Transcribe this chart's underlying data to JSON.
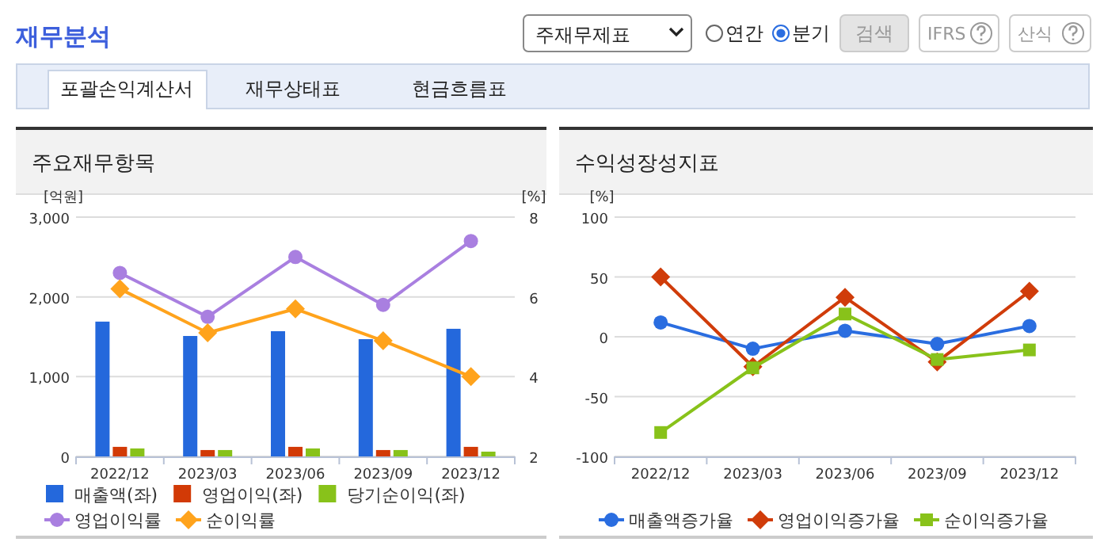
{
  "chart_data": [
    {
      "type": "other",
      "title": "재무분석",
      "annotations": [
        "주재무제표",
        "연간",
        "분기",
        "검색",
        "IFRS",
        "산식",
        "포괄손익계산서",
        "재무상태표",
        "현금흐름표"
      ]
    },
    {
      "type": "bar",
      "title": "주요재무항목",
      "categories": [
        "2022/12",
        "2023/03",
        "2023/06",
        "2023/09",
        "2023/12"
      ],
      "ylabel": "[억원]",
      "y2label": "[%]",
      "ylim": [
        0,
        3000
      ],
      "yticks": [
        {
          "value": 0,
          "label": "0"
        },
        {
          "value": 1000,
          "label": "1,000"
        },
        {
          "value": 2000,
          "label": "2,000"
        },
        {
          "value": 3000,
          "label": "3,000"
        }
      ],
      "y2lim": [
        2,
        8
      ],
      "y2ticks": [
        2,
        4,
        6,
        8
      ],
      "grid": "y",
      "legend": "bottom",
      "series": [
        {
          "name": "매출액(좌)",
          "color": "#2468dc",
          "values": [
            1690,
            1510,
            1570,
            1470,
            1600
          ]
        },
        {
          "name": "영업이익(좌)",
          "color": "#d23a06",
          "values": [
            120,
            80,
            120,
            80,
            120
          ]
        },
        {
          "name": "당기순이익(좌)",
          "color": "#88c21a",
          "values": [
            100,
            80,
            100,
            80,
            60
          ]
        },
        {
          "name": "영업이익률",
          "type": "line",
          "axis": "y2",
          "marker": "circle",
          "color": "#a97fe0",
          "values": [
            6.6,
            5.5,
            7.0,
            5.8,
            7.4
          ]
        },
        {
          "name": "순이익률",
          "type": "line",
          "axis": "y2",
          "marker": "diamond",
          "color": "#ffa31c",
          "values": [
            6.2,
            5.1,
            5.7,
            4.9,
            4.0
          ]
        }
      ]
    },
    {
      "type": "line",
      "title": "수익성장성지표",
      "categories": [
        "2022/12",
        "2023/03",
        "2023/06",
        "2023/09",
        "2023/12"
      ],
      "ylabel": "[%]",
      "ylim": [
        -100,
        100
      ],
      "yticks": [
        -100,
        -50,
        0,
        50,
        100
      ],
      "grid": "y",
      "legend": "bottom",
      "series": [
        {
          "name": "매출액증가율",
          "marker": "circle",
          "color": "#2a6de0",
          "values": [
            12,
            -10,
            5,
            -6,
            9
          ]
        },
        {
          "name": "영업이익증가율",
          "marker": "diamond",
          "color": "#d03c0a",
          "values": [
            50,
            -25,
            33,
            -21,
            38
          ]
        },
        {
          "name": "순이익증가율",
          "marker": "square",
          "color": "#88c21a",
          "values": [
            -80,
            -26,
            19,
            -19,
            -11
          ]
        }
      ]
    }
  ]
}
